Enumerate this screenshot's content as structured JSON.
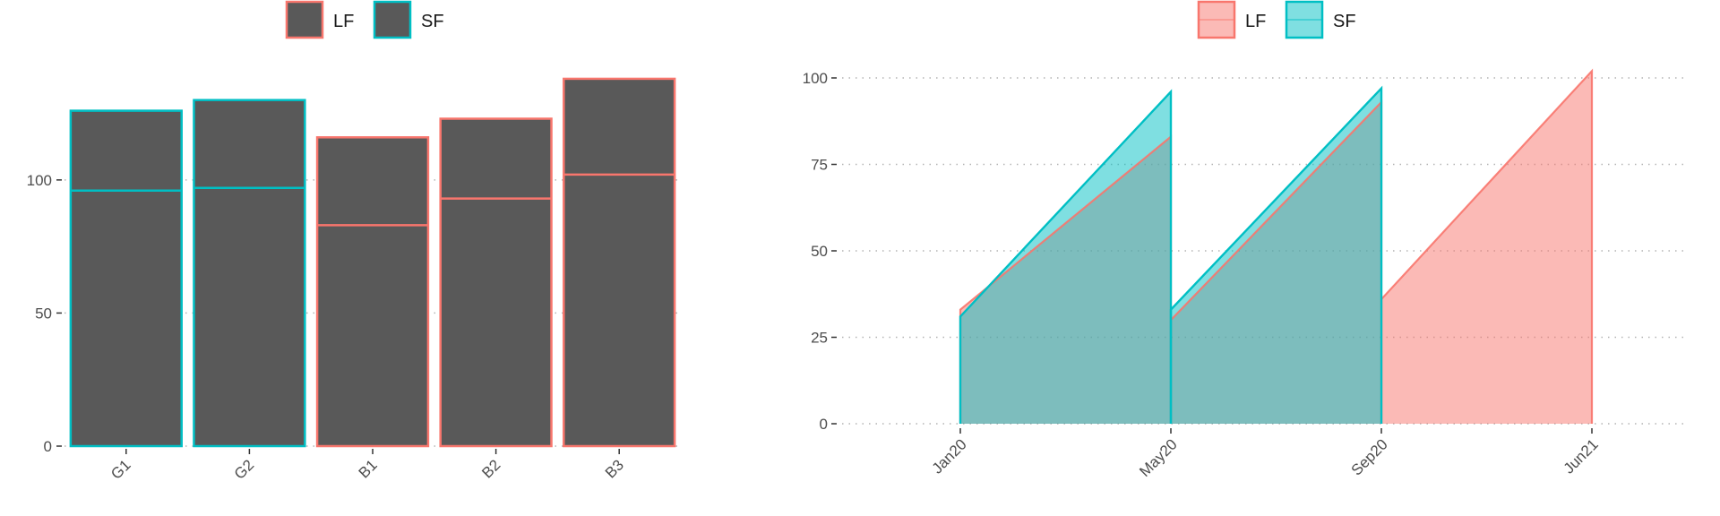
{
  "chart_data": [
    {
      "type": "bar",
      "title": "",
      "xlabel": "",
      "ylabel": "",
      "legend": {
        "placement": "top",
        "entries": [
          "LF",
          "SF"
        ]
      },
      "legend_colors": {
        "LF": "#F8766D",
        "SF": "#00BFC4"
      },
      "fill_color": "#595959",
      "grid": "dotted",
      "categories": [
        "G1",
        "G2",
        "B1",
        "B2",
        "B3"
      ],
      "group": [
        "SF",
        "SF",
        "LF",
        "LF",
        "LF"
      ],
      "values": [
        126,
        130,
        116,
        123,
        138
      ],
      "inner_line": [
        96,
        97,
        83,
        93,
        102
      ],
      "yticks": [
        0,
        50,
        100
      ],
      "ylim": [
        0,
        140
      ]
    },
    {
      "type": "area",
      "title": "",
      "xlabel": "",
      "ylabel": "",
      "legend": {
        "placement": "top",
        "entries": [
          "LF",
          "SF"
        ]
      },
      "colors": {
        "LF": "#F8766D",
        "SF": "#00BFC4",
        "LF_fill": "#F8766D",
        "SF_fill": "#00BFC4",
        "overlap": "#7FBBB8"
      },
      "grid": "dotted",
      "x_ticks": [
        "Jan20",
        "May20",
        "Sep20",
        "Jun21"
      ],
      "yticks": [
        0,
        25,
        50,
        75,
        100
      ],
      "ylim": [
        0,
        100
      ],
      "series": [
        {
          "name": "LF",
          "segments": [
            {
              "x": [
                "Jan20",
                "May20"
              ],
              "y": [
                33,
                83
              ]
            },
            {
              "x": [
                "May20",
                "Sep20"
              ],
              "y": [
                30,
                93
              ]
            },
            {
              "x": [
                "Sep20",
                "Jun21"
              ],
              "y": [
                36,
                102
              ]
            }
          ]
        },
        {
          "name": "SF",
          "segments": [
            {
              "x": [
                "Jan20",
                "May20"
              ],
              "y": [
                31,
                96
              ]
            },
            {
              "x": [
                "May20",
                "Sep20"
              ],
              "y": [
                33,
                97
              ]
            }
          ]
        }
      ]
    }
  ]
}
